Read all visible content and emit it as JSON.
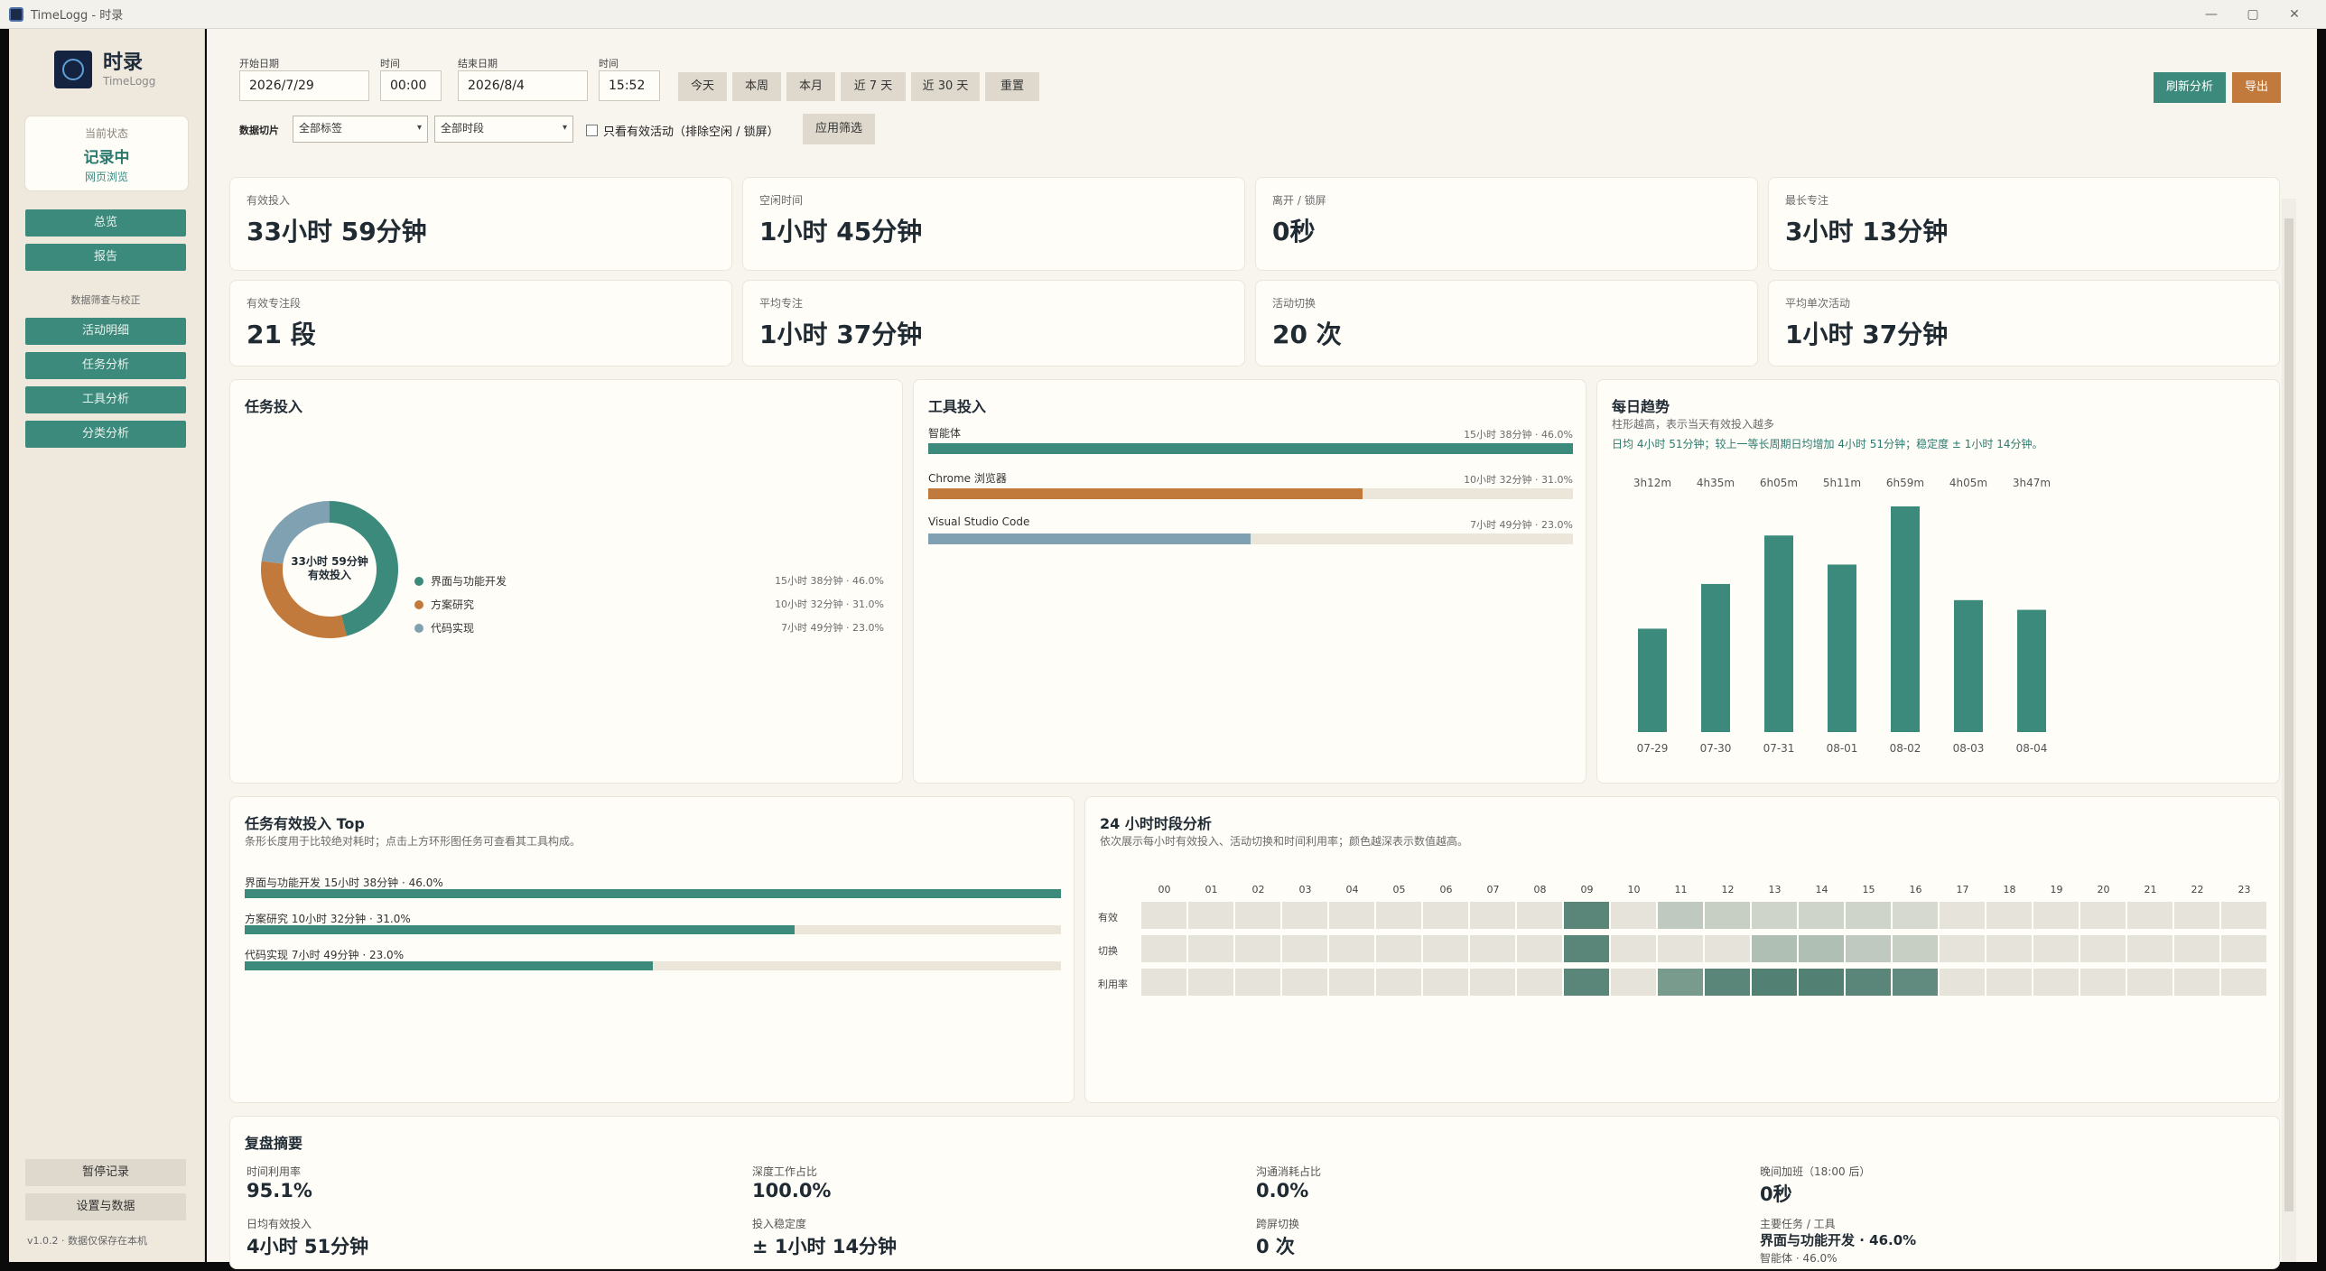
{
  "window": {
    "title": "TimeLogg - 时录",
    "min": "—",
    "max": "▢",
    "close": "✕"
  },
  "brand": {
    "name": "时录",
    "sub": "TimeLogg"
  },
  "status": {
    "label": "当前状态",
    "value": "记录中",
    "sub": "网页浏览"
  },
  "nav": {
    "overview": "总览",
    "report": "报告",
    "section": "数据筛查与校正",
    "activity": "活动明细",
    "task": "任务分析",
    "tool": "工具分析",
    "category": "分类分析"
  },
  "sidebar_bottom": {
    "pause": "暂停记录",
    "settings": "设置与数据",
    "version": "v1.0.2 · 数据仅保存在本机"
  },
  "filters": {
    "start_date_label": "开始日期",
    "start_date": "2026/7/29",
    "start_time_label": "时间",
    "start_time": "00:00",
    "end_date_label": "结束日期",
    "end_date": "2026/8/4",
    "end_time_label": "时间",
    "end_time": "15:52",
    "quick": [
      "今天",
      "本周",
      "本月",
      "近 7 天",
      "近 30 天",
      "重置"
    ],
    "slice_label": "数据切片",
    "tag_select": "全部标签",
    "period_select": "全部时段",
    "only_active": "只看有效活动（排除空闲 / 锁屏）",
    "apply": "应用筛选",
    "refresh": "刷新分析",
    "export": "导出",
    "accent_teal": "#3b8a7c",
    "accent_orange": "#c27a3c"
  },
  "kpis": [
    {
      "label": "有效投入",
      "value": "33小时 59分钟"
    },
    {
      "label": "空闲时间",
      "value": "1小时 45分钟"
    },
    {
      "label": "离开 / 锁屏",
      "value": "0秒"
    },
    {
      "label": "最长专注",
      "value": "3小时 13分钟"
    },
    {
      "label": "有效专注段",
      "value": "21 段"
    },
    {
      "label": "平均专注",
      "value": "1小时 37分钟"
    },
    {
      "label": "活动切换",
      "value": "20 次"
    },
    {
      "label": "平均单次活动",
      "value": "1小时 37分钟"
    }
  ],
  "task_input": {
    "title": "任务投入",
    "center_line1": "33小时 59分钟",
    "center_line2": "有效投入",
    "items": [
      {
        "name": "界面与功能开发",
        "value": "15小时 38分钟 · 46.0%",
        "share": 46.0,
        "color": "#3b8a7c"
      },
      {
        "name": "方案研究",
        "value": "10小时 32分钟 · 31.0%",
        "share": 31.0,
        "color": "#c27a3c"
      },
      {
        "name": "代码实现",
        "value": "7小时 49分钟 · 23.0%",
        "share": 23.0,
        "color": "#7fa1b1"
      }
    ]
  },
  "tool_input": {
    "title": "工具投入",
    "items": [
      {
        "name": "智能体",
        "value": "15小时 38分钟 · 46.0%",
        "share": 46.0,
        "color": "#3b8a7c"
      },
      {
        "name": "Chrome 浏览器",
        "value": "10小时 32分钟 · 31.0%",
        "share": 31.0,
        "color": "#c27a3c"
      },
      {
        "name": "Visual Studio Code",
        "value": "7小时 49分钟 · 23.0%",
        "share": 23.0,
        "color": "#7fa1b1"
      }
    ]
  },
  "daily_trend": {
    "title": "每日趋势",
    "sub": "柱形越高，表示当天有效投入越多",
    "note": "日均 4小时 51分钟；较上一等长周期日均增加 4小时 51分钟；稳定度 ± 1小时 14分钟。"
  },
  "chart_data": {
    "type": "bar",
    "categories": [
      "07-29",
      "07-30",
      "07-31",
      "08-01",
      "08-02",
      "08-03",
      "08-04"
    ],
    "values": [
      192,
      275,
      365,
      311,
      419,
      245,
      227
    ],
    "data_labels": [
      "3h12m",
      "4h35m",
      "6h05m",
      "5h11m",
      "6h59m",
      "4h05m",
      "3h47m"
    ],
    "ylim": [
      0,
      419
    ],
    "grid": false,
    "color": "#3b8a7c"
  },
  "task_top": {
    "title": "任务有效投入 Top",
    "sub": "条形长度用于比较绝对耗时；点击上方环形图任务可查看其工具构成。",
    "items": [
      {
        "label": "界面与功能开发  15小时 38分钟 · 46.0%",
        "ratio": 1.0
      },
      {
        "label": "方案研究  10小时 32分钟 · 31.0%",
        "ratio": 0.674
      },
      {
        "label": "代码实现  7小时 49分钟 · 23.0%",
        "ratio": 0.5
      }
    ]
  },
  "hourly": {
    "title": "24 小时时段分析",
    "sub": "依次展示每小时有效投入、活动切换和时间利用率；颜色越深表示数值越高。",
    "hours": [
      "00",
      "01",
      "02",
      "03",
      "04",
      "05",
      "06",
      "07",
      "08",
      "09",
      "10",
      "11",
      "12",
      "13",
      "14",
      "15",
      "16",
      "17",
      "18",
      "19",
      "20",
      "21",
      "22",
      "23"
    ],
    "rows": [
      {
        "label": "有效",
        "levels": [
          0,
          0,
          0,
          0,
          0,
          0,
          0,
          0,
          0,
          0.9,
          0,
          0.25,
          0.2,
          0.15,
          0.15,
          0.15,
          0.1,
          0,
          0,
          0,
          0,
          0,
          0,
          0
        ]
      },
      {
        "label": "切换",
        "levels": [
          0,
          0,
          0,
          0,
          0,
          0,
          0,
          0,
          0,
          0.9,
          0,
          0,
          0,
          0.35,
          0.35,
          0.25,
          0.2,
          0,
          0,
          0,
          0,
          0,
          0,
          0
        ]
      },
      {
        "label": "利用率",
        "levels": [
          0,
          0,
          0,
          0,
          0,
          0,
          0,
          0,
          0,
          0.9,
          0,
          0.7,
          0.9,
          0.95,
          0.95,
          0.9,
          0.85,
          0,
          0,
          0,
          0,
          0,
          0,
          0
        ]
      }
    ]
  },
  "summary": {
    "title": "复盘摘要",
    "items": [
      {
        "label": "时间利用率",
        "value": "95.1%"
      },
      {
        "label": "深度工作占比",
        "value": "100.0%"
      },
      {
        "label": "沟通消耗占比",
        "value": "0.0%"
      },
      {
        "label": "晚间加班（18:00 后）",
        "value": "0秒"
      },
      {
        "label": "日均有效投入",
        "value": "4小时 51分钟"
      },
      {
        "label": "投入稳定度",
        "value": "± 1小时 14分钟"
      },
      {
        "label": "跨屏切换",
        "value": "0 次"
      },
      {
        "label": "主要任务 / 工具",
        "value": "界面与功能开发 · 46.0%",
        "extra": "智能体 · 46.0%"
      }
    ]
  }
}
